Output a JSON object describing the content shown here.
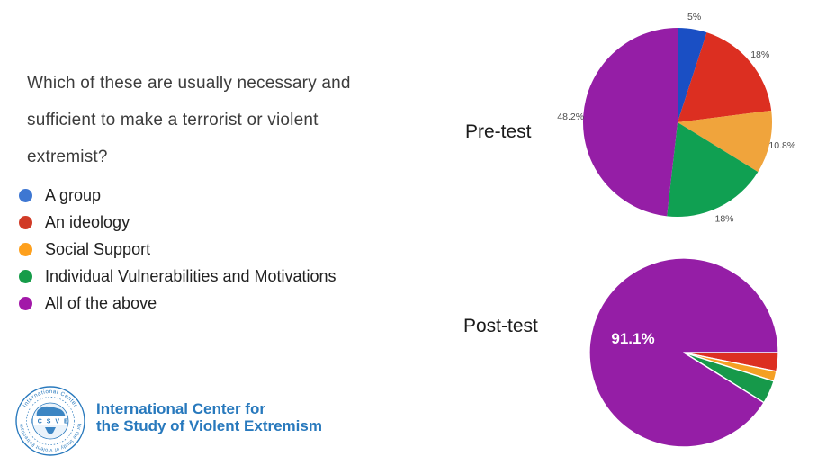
{
  "slide": {
    "question": {
      "lines": [
        "Which of these are usually necessary and",
        "sufficient to make a terrorist or violent",
        "extremist?"
      ]
    },
    "legend": {
      "items": [
        {
          "label": "A group",
          "color": "#3e77d2"
        },
        {
          "label": "An ideology",
          "color": "#d13b27"
        },
        {
          "label": "Social Support",
          "color": "#fea01d"
        },
        {
          "label": "Individual Vulnerabilities and Motivations",
          "color": "#169c49"
        },
        {
          "label": "All of the above",
          "color": "#a218a8"
        }
      ]
    },
    "logo": {
      "seal_text_top": "International Center",
      "seal_text_bottom": "for the Study of Violent Extremism",
      "seal_acronym": "I C S V E",
      "name_line1": "International Center for",
      "name_line2": "the Study of Violent Extremism",
      "brand_color": "#2879bd"
    }
  },
  "chart_data": [
    {
      "type": "pie",
      "title": "Pre-test",
      "direction": "clockwise",
      "start_angle_deg": 0,
      "legend_position": "shared-left",
      "slices": [
        {
          "category": "A group",
          "value": 5,
          "label": "5%",
          "color": "#1a4fc4"
        },
        {
          "category": "An ideology",
          "value": 18,
          "label": "18%",
          "color": "#dc2f21"
        },
        {
          "category": "Social Support",
          "value": 10.8,
          "label": "10.8%",
          "color": "#f0a43c"
        },
        {
          "category": "Individual Vulnerabilities and Motivations",
          "value": 18,
          "label": "18%",
          "color": "#10a052"
        },
        {
          "category": "All of the above",
          "value": 48.2,
          "label": "48.2%",
          "color": "#951ea6"
        }
      ]
    },
    {
      "type": "pie",
      "title": "Post-test",
      "direction": "clockwise",
      "start_angle_deg": 90,
      "legend_position": "shared-left",
      "slice_stroke": "#ffffff",
      "slices": [
        {
          "category": "An ideology",
          "value": 3.2,
          "color": "#dc2f21"
        },
        {
          "category": "Social Support",
          "value": 1.7,
          "color": "#f5a024"
        },
        {
          "category": "Individual Vulnerabilities and Motivations",
          "value": 4.0,
          "color": "#16994a"
        },
        {
          "category": "All of the above",
          "value": 91.1,
          "label": "91.1%",
          "label_inside": true,
          "color": "#951ea6"
        }
      ]
    }
  ]
}
